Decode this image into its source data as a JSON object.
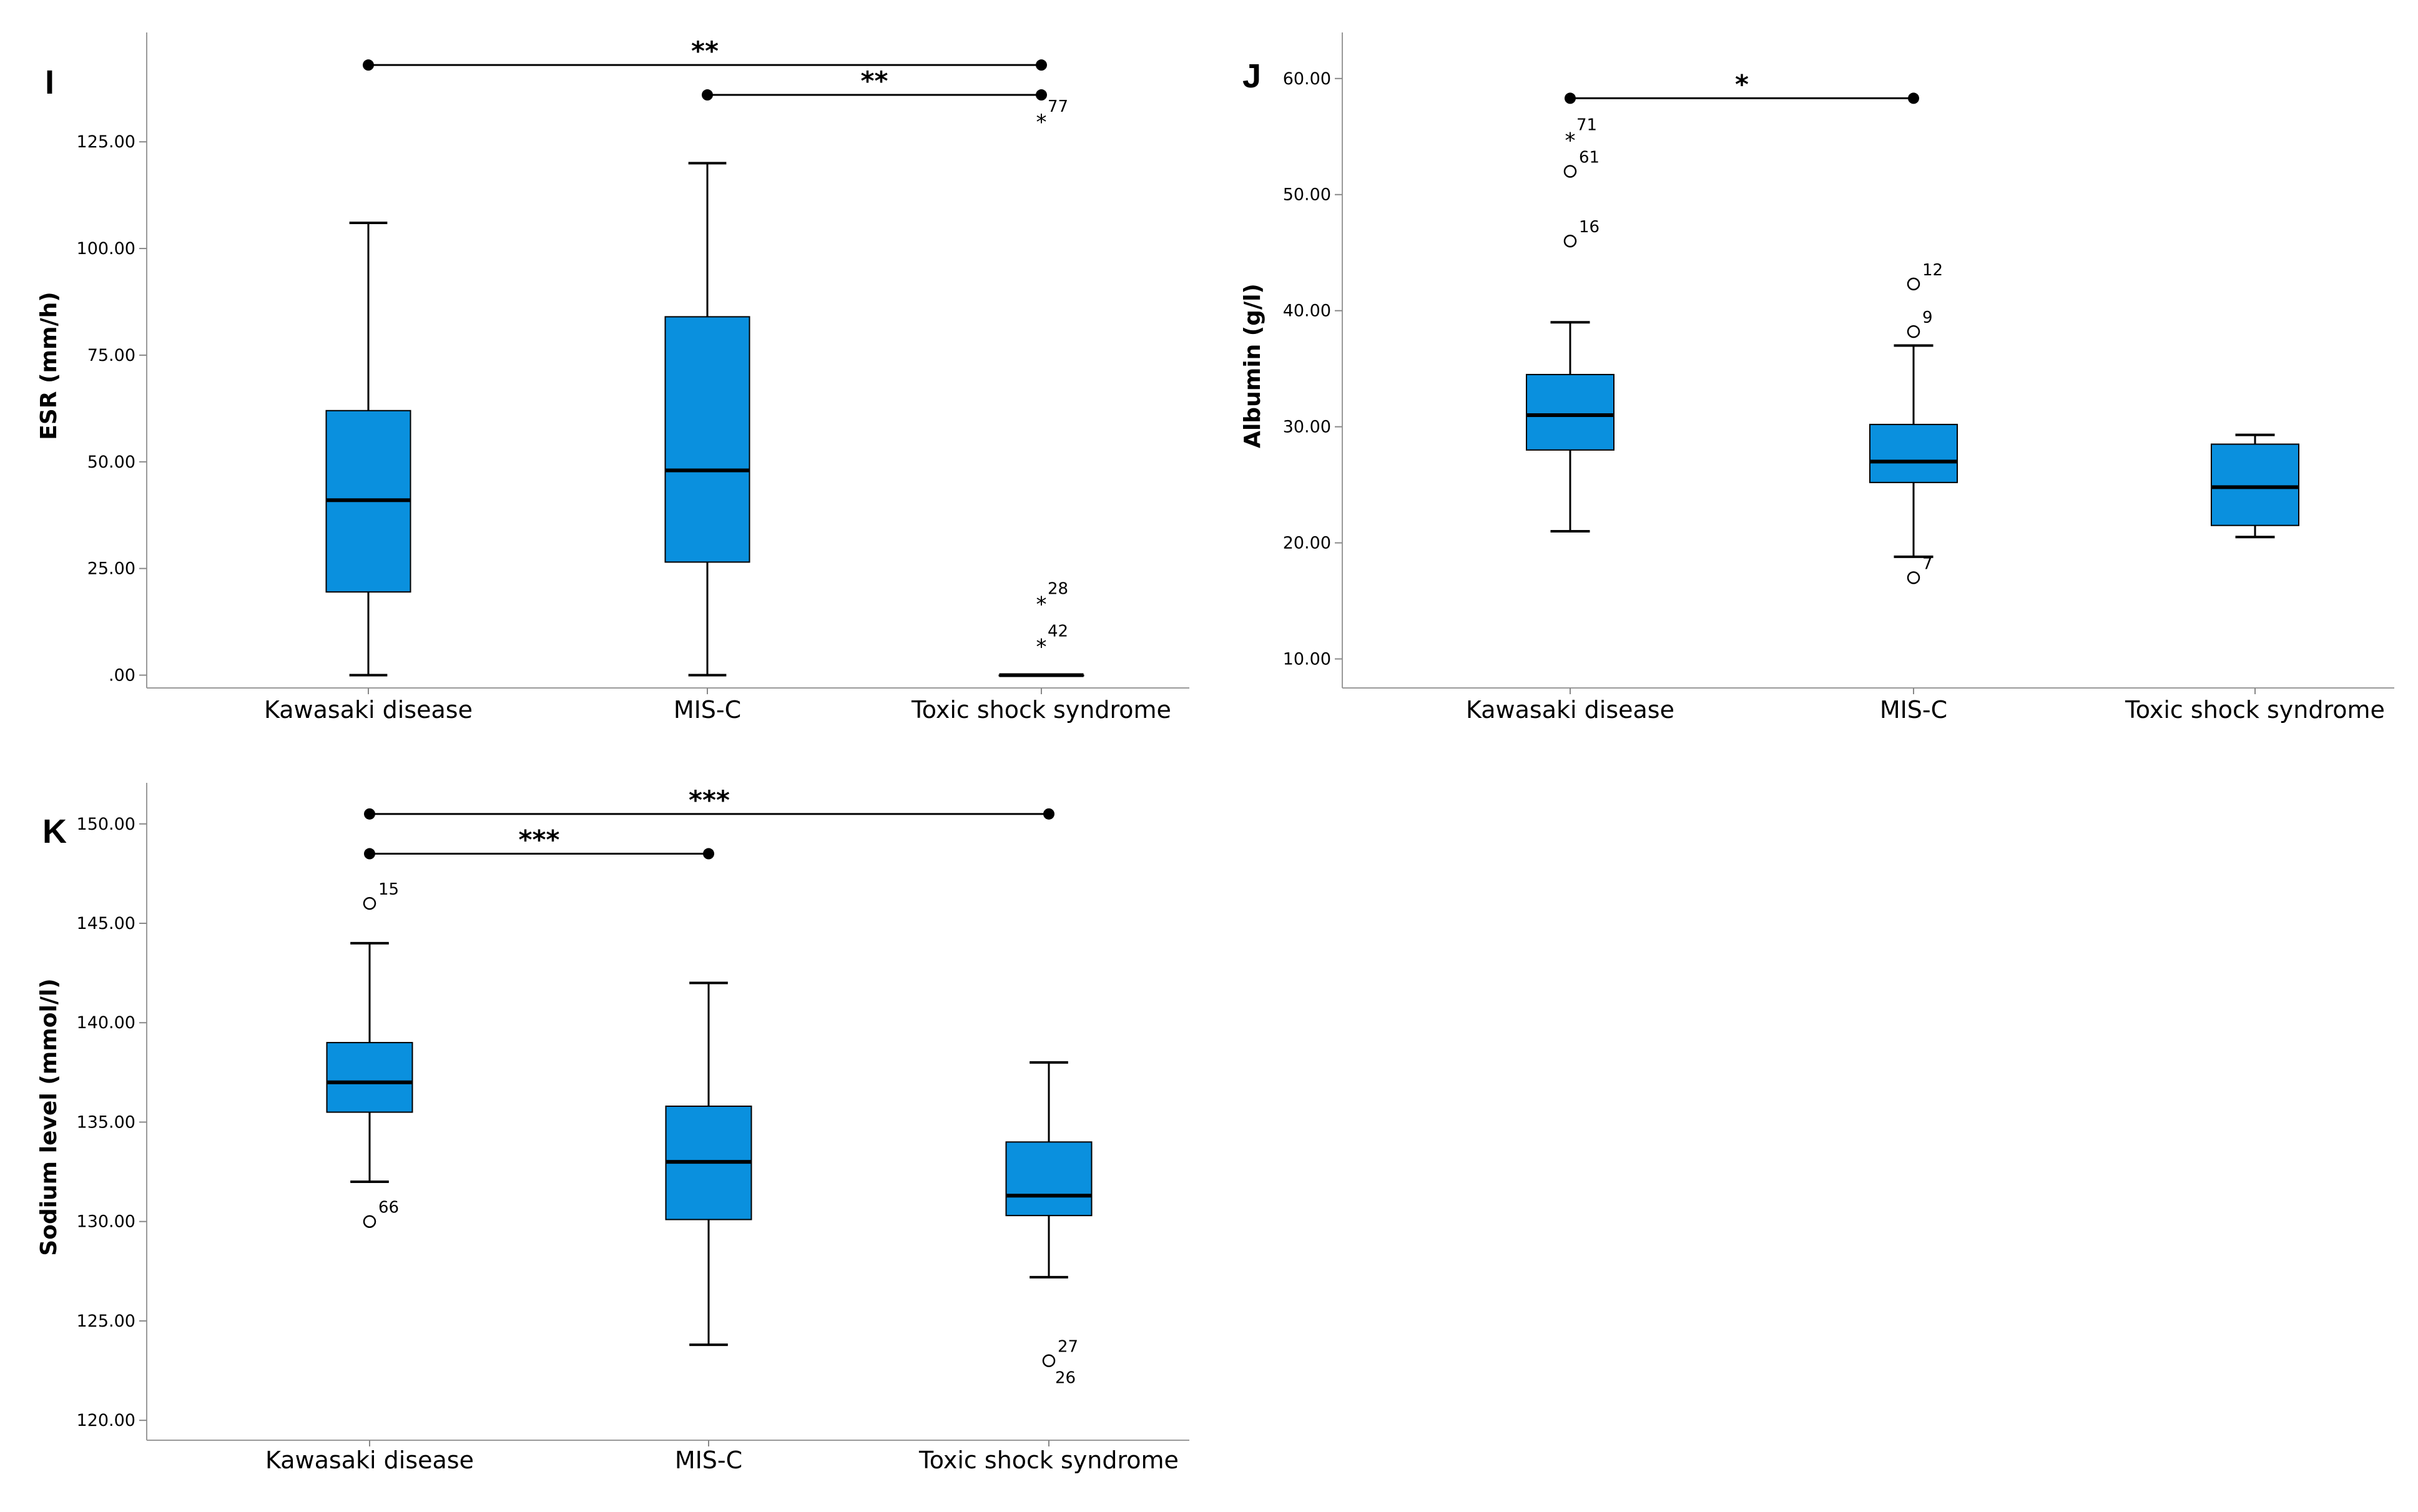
{
  "figure": {
    "colors": {
      "box_fill": "#0a90de",
      "stroke": "#000000",
      "background": "#ffffff"
    }
  },
  "chart_data": [
    {
      "panel": "I",
      "type": "box",
      "ylabel": "ESR (mm/h)",
      "ylim": [
        -3,
        148
      ],
      "yticks": [
        0,
        25,
        50,
        75,
        100,
        125
      ],
      "ytick_labels": [
        ".00",
        "25.00",
        "50.00",
        "75.00",
        "100.00",
        "125.00"
      ],
      "categories": [
        "Kawasaki disease",
        "MIS-C",
        "Toxic shock syndrome"
      ],
      "boxes": [
        {
          "min": 0,
          "q1": 19.5,
          "median": 41,
          "q3": 62,
          "max": 106
        },
        {
          "min": 0,
          "q1": 26.5,
          "median": 48,
          "q3": 84,
          "max": 120
        },
        {
          "min": 0,
          "q1": 0,
          "median": 0,
          "q3": 0,
          "max": 0
        }
      ],
      "outliers": [
        {
          "category": 2,
          "value": 130,
          "marker": "star",
          "label": "77"
        },
        {
          "category": 2,
          "value": 17,
          "marker": "star",
          "label": "28"
        },
        {
          "category": 2,
          "value": 7,
          "marker": "star",
          "label": "42"
        }
      ],
      "significance": [
        {
          "from": 0,
          "to": 2,
          "level": 143,
          "label": "**"
        },
        {
          "from": 1,
          "to": 2,
          "level": 136,
          "label": "**"
        }
      ]
    },
    {
      "panel": "J",
      "type": "box",
      "ylabel": "Albumin (g/l)",
      "ylim": [
        7.5,
        63
      ],
      "yticks": [
        10,
        20,
        30,
        40,
        50,
        60
      ],
      "ytick_labels": [
        "10.00",
        "20.00",
        "30.00",
        "40.00",
        "50.00",
        "60.00"
      ],
      "categories": [
        "Kawasaki disease",
        "MIS-C",
        "Toxic shock syndrome"
      ],
      "boxes": [
        {
          "min": 21,
          "q1": 28,
          "median": 31,
          "q3": 34.5,
          "max": 39
        },
        {
          "min": 18.8,
          "q1": 25.2,
          "median": 27,
          "q3": 30.2,
          "max": 37
        },
        {
          "min": 20.5,
          "q1": 21.5,
          "median": 24.8,
          "q3": 28.5,
          "max": 29.3
        }
      ],
      "outliers": [
        {
          "category": 0,
          "value": 54.8,
          "marker": "star",
          "label": "71"
        },
        {
          "category": 0,
          "value": 52,
          "marker": "circle",
          "label": "61"
        },
        {
          "category": 0,
          "value": 46,
          "marker": "circle",
          "label": "16"
        },
        {
          "category": 1,
          "value": 42.3,
          "marker": "circle",
          "label": "12"
        },
        {
          "category": 1,
          "value": 38.2,
          "marker": "circle",
          "label": "9"
        },
        {
          "category": 1,
          "value": 17,
          "marker": "circle",
          "label": "7"
        }
      ],
      "significance": [
        {
          "from": 0,
          "to": 1,
          "level": 58.3,
          "label": "*"
        }
      ]
    },
    {
      "panel": "K",
      "type": "box",
      "ylabel": "Sodium level (mmol/l)",
      "ylim": [
        119,
        151.5
      ],
      "yticks": [
        120,
        125,
        130,
        135,
        140,
        145,
        150
      ],
      "ytick_labels": [
        "120.00",
        "125.00",
        "130.00",
        "135.00",
        "140.00",
        "145.00",
        "150.00"
      ],
      "categories": [
        "Kawasaki disease",
        "MIS-C",
        "Toxic shock syndrome"
      ],
      "boxes": [
        {
          "min": 132,
          "q1": 135.5,
          "median": 137,
          "q3": 139,
          "max": 144
        },
        {
          "min": 123.8,
          "q1": 130.1,
          "median": 133,
          "q3": 135.8,
          "max": 142
        },
        {
          "min": 127.2,
          "q1": 130.3,
          "median": 131.3,
          "q3": 134,
          "max": 138
        }
      ],
      "outliers": [
        {
          "category": 0,
          "value": 146,
          "marker": "circle",
          "label": "15"
        },
        {
          "category": 0,
          "value": 130,
          "marker": "circle",
          "label": "66"
        },
        {
          "category": 2,
          "value": 123,
          "marker": "circle",
          "label": "27"
        },
        {
          "category": 2,
          "value": 123,
          "marker": "none",
          "label": "26"
        }
      ],
      "significance": [
        {
          "from": 0,
          "to": 2,
          "level": 150.5,
          "label": "***"
        },
        {
          "from": 0,
          "to": 1,
          "level": 148.5,
          "label": "***"
        }
      ]
    }
  ]
}
